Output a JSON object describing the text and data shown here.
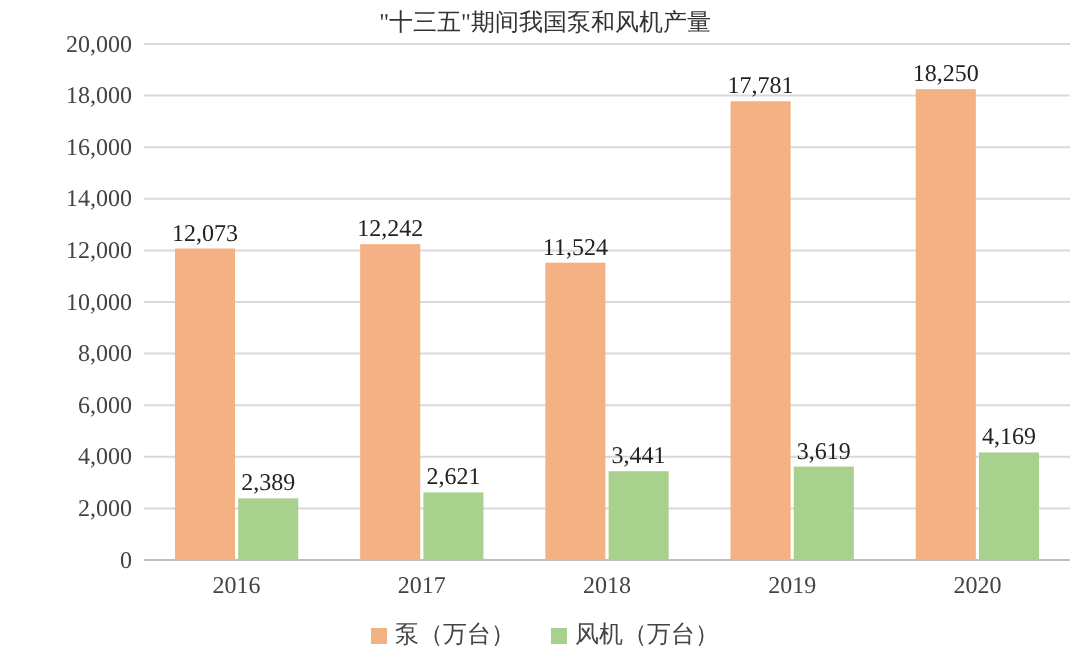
{
  "chart_data": {
    "type": "bar",
    "title": "\"十三五\"期间我国泵和风机产量",
    "categories": [
      "2016",
      "2017",
      "2018",
      "2019",
      "2020"
    ],
    "series": [
      {
        "name": "泵（万台）",
        "color": "#f4b183",
        "values": [
          12073,
          12242,
          11524,
          17781,
          18250
        ],
        "value_labels": [
          "12,073",
          "12,242",
          "11,524",
          "17,781",
          "18,250"
        ]
      },
      {
        "name": "风机（万台）",
        "color": "#a9d18e",
        "values": [
          2389,
          2621,
          3441,
          3619,
          4169
        ],
        "value_labels": [
          "2,389",
          "2,621",
          "3,441",
          "3,619",
          "4,169"
        ]
      }
    ],
    "ylim": [
      0,
      20000
    ],
    "yticks": [
      {
        "value": 0,
        "label": "0"
      },
      {
        "value": 2000,
        "label": "2,000"
      },
      {
        "value": 4000,
        "label": "4,000"
      },
      {
        "value": 6000,
        "label": "6,000"
      },
      {
        "value": 8000,
        "label": "8,000"
      },
      {
        "value": 10000,
        "label": "10,000"
      },
      {
        "value": 12000,
        "label": "12,000"
      },
      {
        "value": 14000,
        "label": "14,000"
      },
      {
        "value": 16000,
        "label": "16,000"
      },
      {
        "value": 18000,
        "label": "18,000"
      },
      {
        "value": 20000,
        "label": "20,000"
      }
    ],
    "grid": "y",
    "legend": "bottom"
  }
}
